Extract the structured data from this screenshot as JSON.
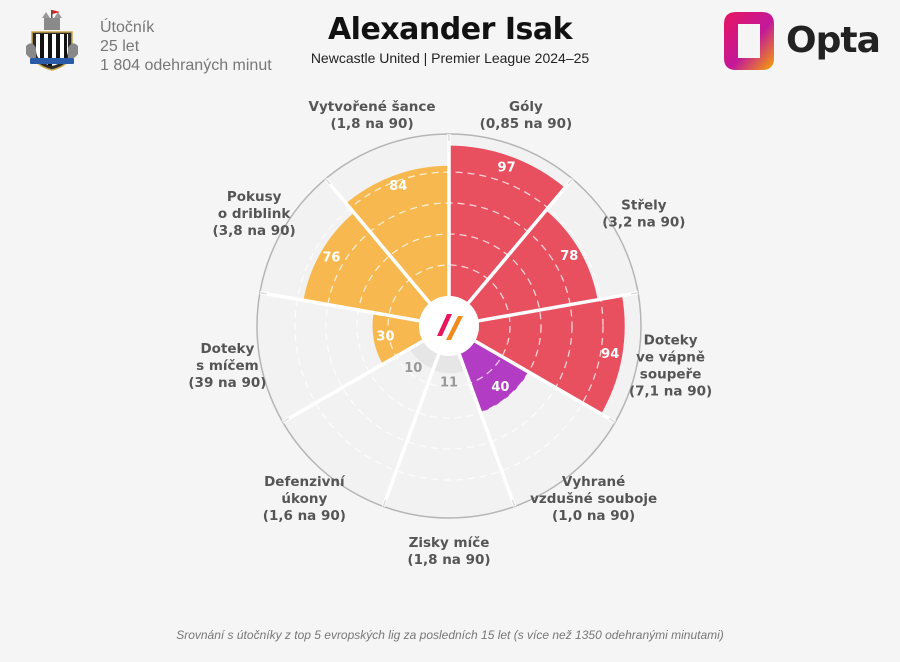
{
  "player": {
    "position": "Útočník",
    "age": "25 let",
    "minutes": "1 804 odehraných minut",
    "name": "Alexander Isak",
    "club_season": "Newcastle United | Premier League 2024–25"
  },
  "brand": {
    "name": "Opta",
    "gradient": [
      "#e8155f",
      "#f7a600"
    ]
  },
  "footnote": "Srovnání s útočníky z top 5 evropských lig za posledních 15 let (s více než 1350 odehranými minutami)",
  "colors": {
    "attacking": "#e8505f",
    "possession": "#b23cc4",
    "creation": "#f7b94f",
    "defending": "#e6e6e6"
  },
  "chart_data": {
    "type": "polar-bar",
    "scale": [
      0,
      100
    ],
    "gridlines": [
      20,
      40,
      60,
      80,
      100
    ],
    "segments": [
      {
        "label": [
          "Góly",
          "(0,85 na 90)"
        ],
        "value": 97,
        "group": "attacking"
      },
      {
        "label": [
          "Střely",
          "(3,2 na 90)"
        ],
        "value": 78,
        "group": "attacking"
      },
      {
        "label": [
          "Doteky",
          "ve vápně",
          "soupeře",
          "(7,1 na 90)"
        ],
        "value": 94,
        "group": "attacking"
      },
      {
        "label": [
          "Vyhrané",
          "vzdušné souboje",
          "(1,0 na 90)"
        ],
        "value": 40,
        "group": "possession"
      },
      {
        "label": [
          "Zisky míče",
          "(1,8 na 90)"
        ],
        "value": 11,
        "group": "defending"
      },
      {
        "label": [
          "Defenzivní",
          "úkony",
          "(1,6 na 90)"
        ],
        "value": 10,
        "group": "defending"
      },
      {
        "label": [
          "Doteky",
          "s míčem",
          "(39 na 90)"
        ],
        "value": 30,
        "group": "creation"
      },
      {
        "label": [
          "Pokusy",
          "o driblink",
          "(3,8 na 90)"
        ],
        "value": 76,
        "group": "creation"
      },
      {
        "label": [
          "Vytvořené šance",
          "(1,8 na 90)"
        ],
        "value": 84,
        "group": "creation"
      }
    ]
  }
}
